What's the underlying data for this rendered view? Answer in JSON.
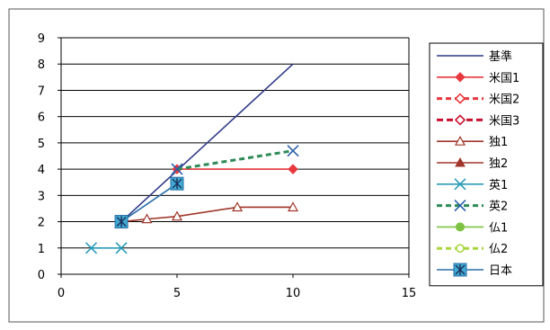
{
  "chart_data": {
    "type": "line",
    "xlim": [
      0,
      15
    ],
    "ylim": [
      0,
      9
    ],
    "x_ticks": [
      0,
      5,
      10,
      15
    ],
    "y_ticks": [
      0,
      1,
      2,
      3,
      4,
      5,
      6,
      7,
      8,
      9
    ],
    "grid": "horizontal",
    "legend_position": "right",
    "series": [
      {
        "name": "基準",
        "color": "#2E3A87",
        "dash": "solid",
        "marker": "none",
        "x": [
          2.6,
          10.0
        ],
        "y": [
          2.0,
          8.0
        ]
      },
      {
        "name": "米国1",
        "color": "#E8383D",
        "dash": "solid",
        "marker": "diamond",
        "x": [
          5.0,
          10.0
        ],
        "y": [
          4.0,
          4.0
        ]
      },
      {
        "name": "米国2",
        "color": "#E8383D",
        "dash": "dashed",
        "marker": "diamond-open",
        "x": [],
        "y": []
      },
      {
        "name": "米国3",
        "color": "#C8102E",
        "dash": "thick-dashed",
        "marker": "diamond-open",
        "x": [],
        "y": []
      },
      {
        "name": "独1",
        "color": "#A0362A",
        "dash": "solid",
        "marker": "triangle-open",
        "x": [
          2.6,
          3.7,
          5.0,
          7.6,
          10.0
        ],
        "y": [
          2.0,
          2.1,
          2.2,
          2.55,
          2.55
        ]
      },
      {
        "name": "独2",
        "color": "#A0362A",
        "dash": "solid",
        "marker": "triangle",
        "x": [],
        "y": []
      },
      {
        "name": "英1",
        "color": "#2A9BB8",
        "dash": "solid",
        "marker": "x",
        "x": [
          1.3,
          2.6
        ],
        "y": [
          1.0,
          1.0
        ]
      },
      {
        "name": "英2",
        "color": "#2E8B57",
        "dash": "dashed",
        "marker": "x-blue",
        "x": [
          5.0,
          10.0
        ],
        "y": [
          4.0,
          4.7
        ]
      },
      {
        "name": "仏1",
        "color": "#7DC242",
        "dash": "solid",
        "marker": "circle",
        "x": [],
        "y": []
      },
      {
        "name": "仏2",
        "color": "#A8D63C",
        "dash": "dashed",
        "marker": "circle-open",
        "x": [],
        "y": []
      },
      {
        "name": "日本",
        "color": "#2A6FA8",
        "dash": "solid",
        "marker": "square-asterisk",
        "x": [
          2.6,
          5.0
        ],
        "y": [
          2.0,
          3.45
        ]
      }
    ]
  }
}
